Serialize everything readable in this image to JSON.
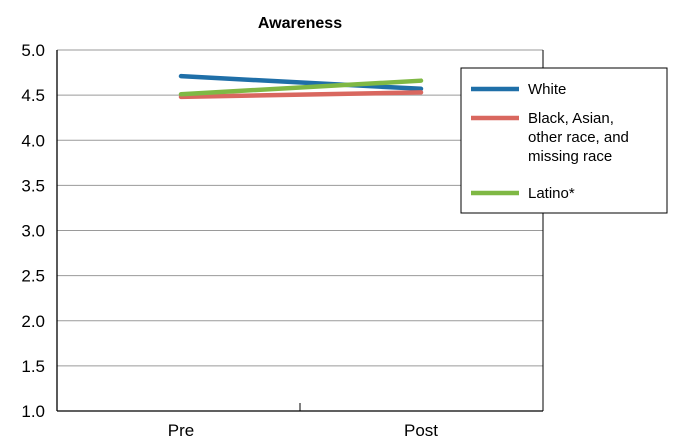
{
  "chart_data": {
    "type": "line",
    "title": "Awareness",
    "categories": [
      "Pre",
      "Post"
    ],
    "ylim": [
      1.0,
      5.0
    ],
    "yticks": [
      "1.0",
      "1.5",
      "2.0",
      "2.5",
      "3.0",
      "3.5",
      "4.0",
      "4.5",
      "5.0"
    ],
    "grid": "horizontal",
    "legend_position": "top-right",
    "series": [
      {
        "name": "White",
        "color": "#1f6fa8",
        "values": [
          4.71,
          4.57
        ]
      },
      {
        "name": "Black, Asian, other race, and missing race",
        "label_lines": [
          "Black, Asian,",
          "other race, and",
          "missing race"
        ],
        "color": "#d9675f",
        "values": [
          4.48,
          4.53
        ]
      },
      {
        "name": "Latino*",
        "color": "#7fb844",
        "values": [
          4.51,
          4.66
        ]
      }
    ]
  }
}
